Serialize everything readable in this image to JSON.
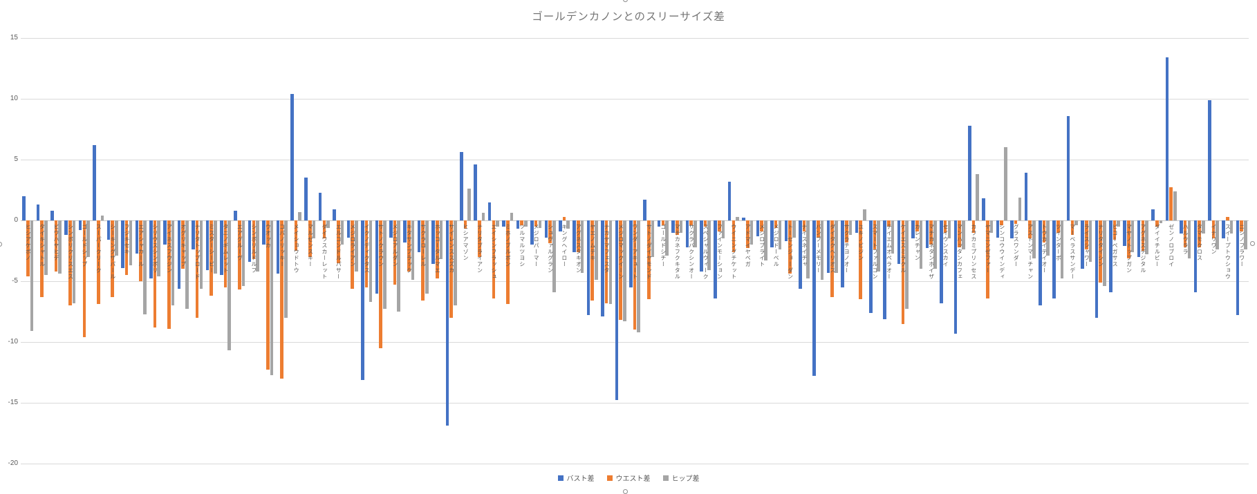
{
  "title": "ゴールデンカノンとのスリーサイズ差",
  "colors": {
    "bust": "#4472C4",
    "waist": "#ED7D31",
    "hip": "#A5A5A5",
    "gridline": "#D9D9D9",
    "axis_text": "#595959",
    "title_text": "#757575"
  },
  "y_axis": {
    "ticks": [
      15,
      10,
      5,
      0,
      -5,
      -10,
      -15,
      -20
    ]
  },
  "legend": {
    "items": [
      "バスト差",
      "ウエスト差",
      "ヒップ差"
    ]
  },
  "chart_data": {
    "type": "bar",
    "title": "ゴールデンカノンとのスリーサイズ差",
    "xlabel": "",
    "ylabel": "",
    "ylim": [
      -20,
      15
    ],
    "grid": true,
    "legend_position": "bottom",
    "categories": [
      "ヒシアケボノ",
      "タイキシャトル",
      "ビワハヤヒデ",
      "シンボリクリスエス",
      "ゴールドシップ",
      "スーパークリーク",
      "シーキングザパール",
      "フジキセキ",
      "エアシャカール",
      "シリウスシンボリ",
      "アイネスフウジン",
      "オグリキャップ",
      "ナリタトップロード",
      "ミスターシービー",
      "タニノギムレット",
      "エアグルーヴ",
      "シンボリルドルフ",
      "ウオッカ",
      "コパノリッキー",
      "メイショウドトウ",
      "マルゼンスキー",
      "ダイワスカーレット",
      "エルコンドルパサー",
      "メジロライアン",
      "イクノディクタス",
      "サトノクラウン",
      "メジロアルダン",
      "キタサンブラック",
      "サクラローレル",
      "ホッコータルマエ",
      "サイレンススズカ",
      "ヒシアマゾン",
      "ナリタブライアン",
      "エイシンフラッシュ",
      "ミホノブルボン",
      "ツルマルツヨシ",
      "メジロパーマー",
      "シュヴァルグラン",
      "キングヘイロー",
      "アグネスタキオン",
      "ヤエノムテキ",
      "ナカヤマフェスタ",
      "メジロマックイーン",
      "ワンダーアキュート",
      "サトノダイヤモンド",
      "ゴールドシチー",
      "マチカネフクキタル",
      "サクラバクシンオー",
      "スペシャルウィーク",
      "ファインモーション",
      "ウイニングチケット",
      "アドマイヤベガ",
      "メジロブライト",
      "メジロドーベル",
      "トーセンジョーダン",
      "ナイスネイチャ",
      "バンブーメモリー",
      "ダイタクヘリオス",
      "サクラチヨノオー",
      "ユキノビジン",
      "スマートファルコン",
      "テイエムオペラオー",
      "ケイエスミラクル",
      "カレンチャン",
      "マチカネタンホイザ",
      "セイウンスカイ",
      "マンハッタンカフェ",
      "カワカミプリンセス",
      "ヤマニンゼファー",
      "シンコウウインディ",
      "グラスワンダー",
      "アストンマーチャン",
      "トウカイテイオー",
      "ツインターボ",
      "マーベラスサンデー",
      "ライスシャワー",
      "ナリタタイシン",
      "ビコーペガサス",
      "マヤノトップガン",
      "アグネスデジタル",
      "ダイイチルビー",
      "ゼンノロブロイ",
      "ハルウララ",
      "タマモクロス",
      "イナリワン",
      "スイープトウショウ",
      "ニシノフラワー"
    ],
    "series": [
      {
        "name": "バスト差",
        "color": "#4472C4",
        "values": [
          2,
          1.3,
          0.8,
          -1.2,
          -0.8,
          6.2,
          -1.6,
          -3.9,
          -2.7,
          -4.8,
          -2,
          -5.6,
          -2.4,
          -4.1,
          -4.5,
          0.8,
          -3.4,
          -2,
          -4.4,
          10.4,
          3.5,
          2.3,
          0.9,
          -1.4,
          -13.1,
          -6,
          -1.4,
          -1.8,
          -2.6,
          -3.6,
          -16.9,
          5.6,
          4.6,
          1.5,
          -0.5,
          -0.7,
          -2,
          -1.4,
          -0.9,
          -2.6,
          -7.8,
          -7.9,
          -14.8,
          -5.5,
          1.7,
          -0.5,
          -1,
          -2.2,
          -4.2,
          -6.4,
          3.2,
          0.2,
          -1.3,
          -2.2,
          -1.7,
          -5.6,
          -12.8,
          -4.3,
          -5.5,
          -1,
          -7.6,
          -8.1,
          -3.6,
          -1.5,
          -2.3,
          -6.8,
          -9.3,
          7.8,
          1.8,
          -1.4,
          -1.5,
          3.9,
          -7,
          -6.4,
          8.6,
          -4,
          -8,
          -5.9,
          -2.1,
          -3,
          0.9,
          13.4,
          -1.1,
          -5.9,
          9.9,
          -1.5,
          -7.8
        ]
      },
      {
        "name": "ウエスト差",
        "color": "#ED7D31",
        "values": [
          -4.6,
          -6.3,
          -4.2,
          -7,
          -9.6,
          -6.9,
          -6.3,
          -4.5,
          -5,
          -8.8,
          -8.9,
          -4,
          -8,
          -6.2,
          -5.5,
          -5.7,
          -3.2,
          -12.3,
          -13,
          -2.5,
          -3,
          -1.5,
          -3.5,
          -5.6,
          -5.5,
          -10.5,
          -5.3,
          -4.2,
          -6.6,
          -4.8,
          -8,
          -0.7,
          -3,
          -6.4,
          -6.9,
          -0.4,
          -0.5,
          -1.9,
          0.3,
          -2.6,
          -6.6,
          -6.8,
          -8.2,
          -9,
          -6.5,
          -0.4,
          -1.2,
          -0.4,
          -0.5,
          -0.9,
          -2.6,
          -2.3,
          -0.9,
          -0.6,
          -4.4,
          -0.9,
          -1.4,
          -6.3,
          -1.8,
          -6.5,
          -2.4,
          -0.5,
          -8.5,
          -0.9,
          -2,
          -1,
          -2.2,
          -1,
          -6.4,
          -0.4,
          -0.3,
          -1.5,
          -1.8,
          -1,
          -1.2,
          -2.4,
          -5.1,
          -1.6,
          -3.1,
          -2.5,
          -0.5,
          2.7,
          -2.2,
          -2.2,
          -1.5,
          0.3,
          -0.9
        ]
      },
      {
        "name": "ヒップ差",
        "color": "#A5A5A5",
        "values": [
          -9.1,
          -4.5,
          -4.4,
          -6.8,
          -3,
          0.4,
          -2.9,
          -3.7,
          -7.7,
          -4.6,
          -7,
          -7.3,
          -5.6,
          -4.4,
          -10.7,
          -5.4,
          -4.2,
          -12.7,
          -8,
          0.7,
          -1.5,
          -0.6,
          -2,
          -4.2,
          -6.7,
          -7.3,
          -7.5,
          -4.9,
          -6,
          -3.2,
          -7,
          2.6,
          0.6,
          -0.5,
          0.6,
          -0.5,
          -0.6,
          -5.9,
          -0.7,
          -4.3,
          -4.9,
          -6.9,
          -8.3,
          -9.2,
          -3,
          -2.9,
          -1,
          -2.2,
          -4.1,
          -1.5,
          0.3,
          -2,
          -3.3,
          -2.4,
          -1.4,
          -4.8,
          -4.9,
          -4.3,
          -1.2,
          0.9,
          -4.2,
          -2.7,
          -7.3,
          -4,
          -4,
          -1.5,
          -2.4,
          3.8,
          -1,
          6,
          1.9,
          -3.1,
          -2.9,
          -4.8,
          -0.4,
          -3.4,
          -5.4,
          -0.5,
          -2.6,
          -2.8,
          -0.2,
          2.4,
          -3.1,
          -1.1,
          -2.4,
          -1.1,
          -2.4
        ]
      }
    ]
  }
}
